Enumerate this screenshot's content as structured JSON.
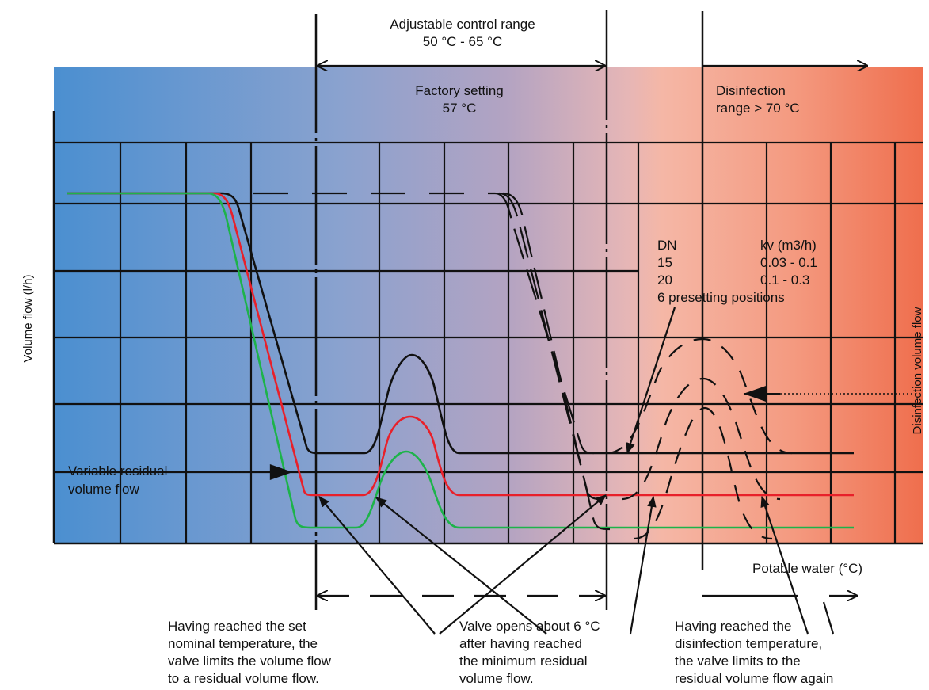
{
  "header": {
    "control_range_line1": "Adjustable control range",
    "control_range_line2": "50 °C - 65 °C",
    "factory_line1": "Factory setting",
    "factory_line2": "57 °C",
    "disinfection_line1": "Disinfection",
    "disinfection_line2": "range > 70 °C"
  },
  "axes": {
    "y_label": "Volume flow (l/h)",
    "x_label": "Potable water (°C)",
    "right_label": "Disinfection volume flow"
  },
  "table": {
    "col1_header": "DN",
    "col2_header": "kv (m3/h)",
    "rows": [
      {
        "dn": "15",
        "kv": "0.03 - 0.1"
      },
      {
        "dn": "20",
        "kv": "0.1 - 0.3"
      }
    ],
    "footer": "6 presetting positions"
  },
  "annotations": {
    "residual_line1": "Variable residual",
    "residual_line2": "volume flow",
    "note1": [
      "Having reached the set",
      "nominal temperature, the",
      "valve limits the volume flow",
      "to a residual volume flow."
    ],
    "note2": [
      "Valve opens about 6 °C",
      "after having reached",
      "the minimum residual",
      "volume flow."
    ],
    "note3": [
      "Having reached the",
      "disinfection temperature,",
      "the valve limits to the",
      "residual volume flow again"
    ]
  },
  "colors": {
    "curve_black": "#111111",
    "curve_red": "#e8202a",
    "curve_green": "#1db34a",
    "band_blue": "#4b8fd0",
    "band_purple": "#a8a0c0",
    "band_pink": "#f4b4a4",
    "band_orange": "#ef7050"
  }
}
